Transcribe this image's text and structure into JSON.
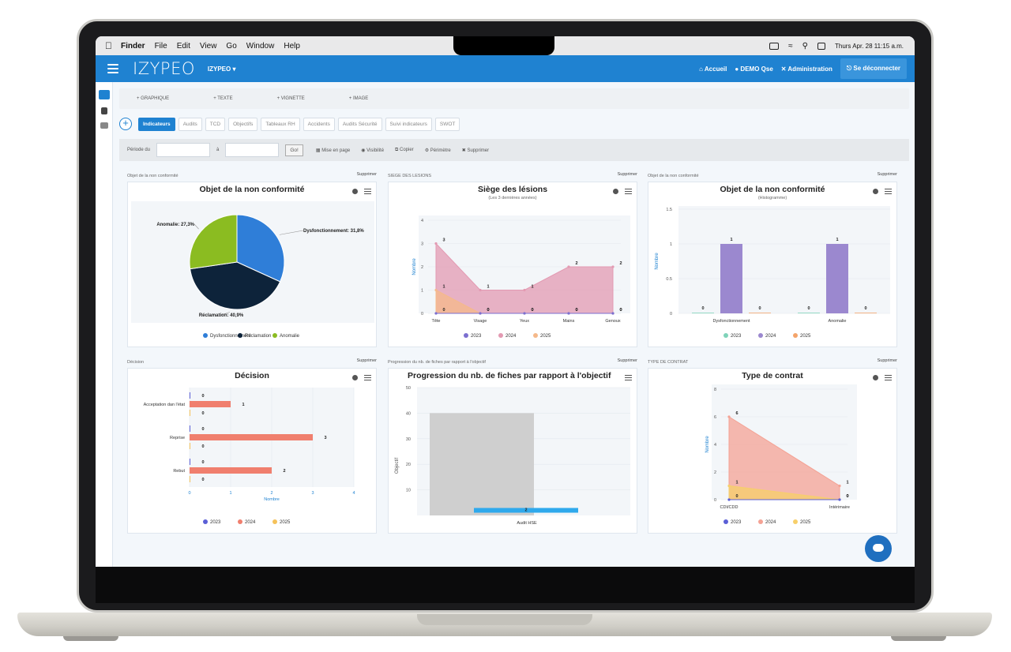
{
  "menubar": {
    "app": "Finder",
    "items": [
      "File",
      "Edit",
      "View",
      "Go",
      "Window",
      "Help"
    ],
    "clock": "Thurs Apr. 28 11:15 a.m."
  },
  "appbar": {
    "logo": "IZYPEO",
    "org": "IZYPEO ▾",
    "home": "Accueil",
    "user": "DEMO Qse",
    "admin": "Administration",
    "logout": "Se déconnecter"
  },
  "addbar": [
    "+ GRAPHIQUE",
    "+ TEXTE",
    "+ VIGNETTE",
    "+ IMAGE"
  ],
  "tabs": [
    "Indicateurs",
    "Audits",
    "TCD",
    "Objectifs",
    "Tableaux RH",
    "Accidents",
    "Audits Sécurité",
    "Suivi indicateurs",
    "SWOT"
  ],
  "filter": {
    "period_label": "Période du",
    "to_label": "à",
    "go": "Go!",
    "actions": [
      "Mise en page",
      "Visibilité",
      "Copier",
      "Périmètre",
      "Supprimer"
    ]
  },
  "panels": {
    "p1": {
      "label": "Objet de la non conformité",
      "delete": "Supprimer",
      "title": "Objet de la non conformité"
    },
    "p2": {
      "label": "SIEGE DES LESIONS",
      "delete": "Supprimer",
      "title": "Siège des lésions",
      "subtitle": "(Les 3 dernières années)"
    },
    "p3": {
      "label": "Objet de la non conformité",
      "delete": "Supprimer",
      "title": "Objet de la non conformité",
      "subtitle": "(Histogramme)"
    },
    "p4": {
      "label": "Décision",
      "delete": "Supprimer",
      "title": "Décision"
    },
    "p5": {
      "label": "Progression du nb. de fiches par rapport à l'objectif",
      "delete": "Supprimer",
      "title": "Progression du nb. de fiches par rapport à l'objectif"
    },
    "p6": {
      "label": "TYPE DE CONTRAT",
      "delete": "Supprimer",
      "title": "Type de contrat"
    }
  },
  "chart_data": [
    {
      "type": "pie",
      "title": "Objet de la non conformité",
      "categories": [
        "Dysfonctionnement",
        "Réclamation",
        "Anomalie"
      ],
      "values": [
        31.8,
        40.9,
        27.3
      ],
      "labels": [
        "Dysfonctionnement: 31,8%",
        "Réclamation: 40,9%",
        "Anomalie: 27,3%"
      ],
      "colors": [
        "#2f7ed8",
        "#0d233a",
        "#8bbc21"
      ]
    },
    {
      "type": "area",
      "title": "Siège des lésions",
      "subtitle": "(Les 3 dernières années)",
      "categories": [
        "Tête",
        "Visage",
        "Yeux",
        "Mains",
        "Genoux"
      ],
      "ylabel": "Nombre",
      "ylim": [
        0,
        4
      ],
      "yticks": [
        0,
        1,
        2,
        3,
        4
      ],
      "series": [
        {
          "name": "2023",
          "values": [
            0,
            0,
            0,
            0,
            0
          ],
          "color": "#7b6fd0"
        },
        {
          "name": "2024",
          "values": [
            3,
            1,
            1,
            2,
            2
          ],
          "color": "#e39ab2"
        },
        {
          "name": "2025",
          "values": [
            1,
            0,
            0,
            0,
            0
          ],
          "color": "#f5b98a"
        }
      ]
    },
    {
      "type": "bar",
      "title": "Objet de la non conformité",
      "subtitle": "(Histogramme)",
      "categories": [
        "Dysfonctionnement",
        "Anomalie"
      ],
      "ylabel": "Nombre",
      "ylim": [
        0,
        1.5
      ],
      "yticks": [
        0,
        0.5,
        1,
        1.5
      ],
      "series": [
        {
          "name": "2023",
          "values": [
            0,
            0
          ],
          "color": "#7fd3b9"
        },
        {
          "name": "2024",
          "values": [
            1,
            1
          ],
          "color": "#9b88cf"
        },
        {
          "name": "2025",
          "values": [
            0,
            0
          ],
          "color": "#f4a46a"
        }
      ]
    },
    {
      "type": "bar",
      "title": "Décision",
      "orientation": "horizontal",
      "categories": [
        "Acceptation dan l'état",
        "Reprise",
        "Rebut"
      ],
      "xlabel": "Nombre",
      "xlim": [
        0,
        4
      ],
      "xticks": [
        0,
        1,
        2,
        3,
        4
      ],
      "series": [
        {
          "name": "2023",
          "values": [
            0,
            0,
            0
          ],
          "color": "#5b5fd6"
        },
        {
          "name": "2024",
          "values": [
            1,
            3,
            2
          ],
          "color": "#f07f6e"
        },
        {
          "name": "2025",
          "values": [
            0,
            0,
            0
          ],
          "color": "#f5c25a"
        }
      ]
    },
    {
      "type": "bar",
      "title": "Progression du nb. de fiches par rapport à l'objectif",
      "categories": [
        "Audit HSE"
      ],
      "ylabel": "Objectif",
      "ylim": [
        0,
        50
      ],
      "yticks": [
        10,
        20,
        30,
        40,
        50
      ],
      "series": [
        {
          "name": "Objectif",
          "values": [
            40
          ],
          "color": "#cfcfcf"
        },
        {
          "name": "Réalisé",
          "values": [
            2
          ],
          "color": "#2fa9ec"
        }
      ]
    },
    {
      "type": "area",
      "title": "Type de contrat",
      "categories": [
        "CDI/CDD",
        "Intérimaire"
      ],
      "ylabel": "Nombre",
      "ylim": [
        0,
        8
      ],
      "yticks": [
        0,
        2,
        4,
        6,
        8
      ],
      "series": [
        {
          "name": "2023",
          "values": [
            0,
            0
          ],
          "color": "#5b5fd6"
        },
        {
          "name": "2024",
          "values": [
            6,
            1
          ],
          "color": "#f4a294"
        },
        {
          "name": "2025",
          "values": [
            1,
            0
          ],
          "color": "#f7cf6a"
        }
      ]
    }
  ]
}
